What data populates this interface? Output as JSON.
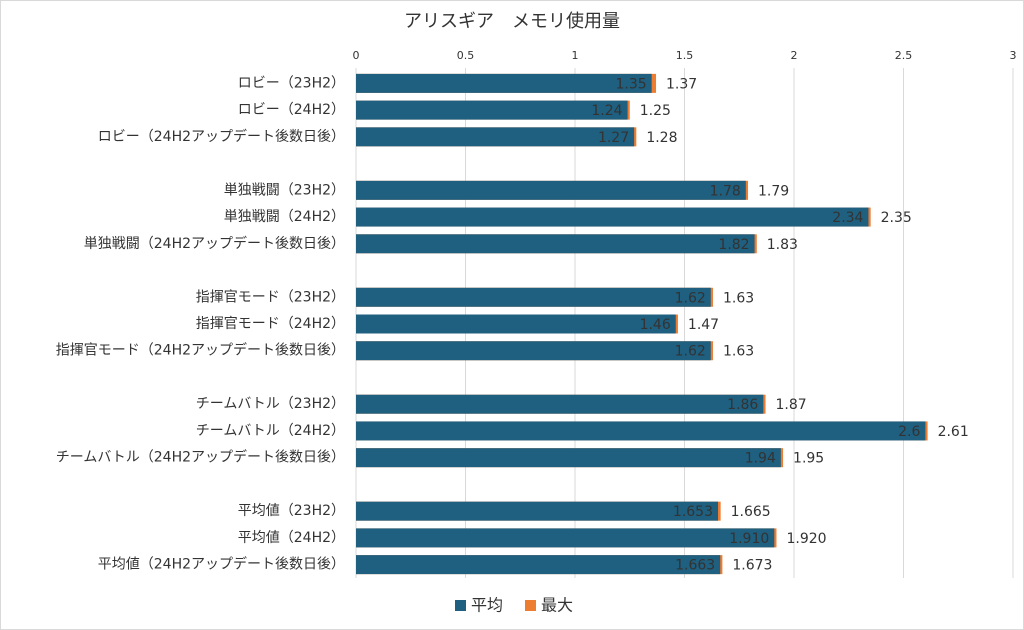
{
  "chart_data": {
    "type": "bar",
    "orientation": "horizontal",
    "title": "アリスギア　メモリ使用量",
    "categories": [
      "ロビー（23H2）",
      "ロビー（24H2）",
      "ロビー（24H2アップデート後数日後）",
      null,
      "単独戦闘（23H2）",
      "単独戦闘（24H2）",
      "単独戦闘（24H2アップデート後数日後）",
      null,
      "指揮官モード（23H2）",
      "指揮官モード（24H2）",
      "指揮官モード（24H2アップデート後数日後）",
      null,
      "チームバトル（23H2）",
      "チームバトル（24H2）",
      "チームバトル（24H2アップデート後数日後）",
      null,
      "平均値（23H2）",
      "平均値（24H2）",
      "平均値（24H2アップデート後数日後）"
    ],
    "series": [
      {
        "name": "平均",
        "color": "#1f5f7f",
        "values": [
          1.35,
          1.24,
          1.27,
          null,
          1.78,
          2.34,
          1.82,
          null,
          1.62,
          1.46,
          1.62,
          null,
          1.86,
          2.6,
          1.94,
          null,
          1.653,
          1.91,
          1.663
        ],
        "value_labels": [
          "1.35",
          "1.24",
          "1.27",
          null,
          "1.78",
          "2.34",
          "1.82",
          null,
          "1.62",
          "1.46",
          "1.62",
          null,
          "1.86",
          "2.6",
          "1.94",
          null,
          "1.653",
          "1.910",
          "1.663"
        ]
      },
      {
        "name": "最大",
        "color": "#ed7d31",
        "values": [
          1.37,
          1.25,
          1.28,
          null,
          1.79,
          2.35,
          1.83,
          null,
          1.63,
          1.47,
          1.63,
          null,
          1.87,
          2.61,
          1.95,
          null,
          1.665,
          1.92,
          1.673
        ],
        "value_labels": [
          "1.37",
          "1.25",
          "1.28",
          null,
          "1.79",
          "2.35",
          "1.83",
          null,
          "1.63",
          "1.47",
          "1.63",
          null,
          "1.87",
          "2.61",
          "1.95",
          null,
          "1.665",
          "1.920",
          "1.673"
        ]
      }
    ],
    "xlim": [
      0,
      3
    ],
    "xticks": [
      0,
      0.5,
      1,
      1.5,
      2,
      2.5,
      3
    ],
    "grid": true,
    "legend": "bottom"
  }
}
